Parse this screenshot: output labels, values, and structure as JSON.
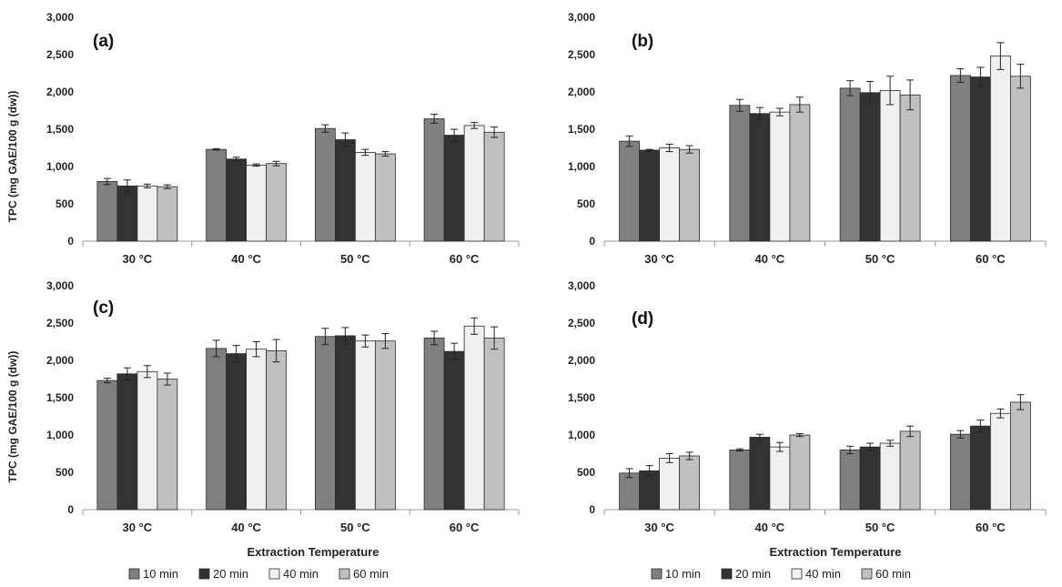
{
  "ylabel": "TPC (mg GAE/100 g (dw))",
  "xlabel": "Extraction Temperature",
  "legend": [
    {
      "label": "10 min",
      "color": "#808080"
    },
    {
      "label": "20 min",
      "color": "#333333"
    },
    {
      "label": "40 min",
      "color": "#f0f0f0"
    },
    {
      "label": "60 min",
      "color": "#c0c0c0"
    }
  ],
  "chart_data": [
    {
      "type": "bar",
      "panel": "(a)",
      "categories": [
        "30 °C",
        "40 °C",
        "50 °C",
        "60 °C"
      ],
      "ylim": [
        0,
        3000
      ],
      "yticks": [
        "0",
        "500",
        "1,000",
        "1,500",
        "2,000",
        "2,500",
        "3,000"
      ],
      "series": [
        {
          "name": "10 min",
          "values": [
            800,
            1230,
            1510,
            1640
          ],
          "errors": [
            40,
            10,
            50,
            60
          ]
        },
        {
          "name": "20 min",
          "values": [
            740,
            1100,
            1360,
            1420
          ],
          "errors": [
            80,
            25,
            90,
            80
          ]
        },
        {
          "name": "40 min",
          "values": [
            740,
            1020,
            1190,
            1550
          ],
          "errors": [
            25,
            15,
            40,
            40
          ]
        },
        {
          "name": "60 min",
          "values": [
            730,
            1040,
            1170,
            1460
          ],
          "errors": [
            25,
            30,
            30,
            70
          ]
        }
      ]
    },
    {
      "type": "bar",
      "panel": "(b)",
      "categories": [
        "30 °C",
        "40 °C",
        "50 °C",
        "60 °C"
      ],
      "ylim": [
        0,
        3000
      ],
      "yticks": [
        "0",
        "500",
        "1,000",
        "1,500",
        "2,000",
        "2,500",
        "3,000"
      ],
      "series": [
        {
          "name": "10 min",
          "values": [
            1340,
            1820,
            2050,
            2220
          ],
          "errors": [
            70,
            80,
            100,
            90
          ]
        },
        {
          "name": "20 min",
          "values": [
            1220,
            1710,
            1990,
            2200
          ],
          "errors": [
            10,
            80,
            150,
            130
          ]
        },
        {
          "name": "40 min",
          "values": [
            1250,
            1730,
            2020,
            2480
          ],
          "errors": [
            50,
            50,
            190,
            180
          ]
        },
        {
          "name": "60 min",
          "values": [
            1230,
            1830,
            1960,
            2210
          ],
          "errors": [
            50,
            100,
            200,
            160
          ]
        }
      ]
    },
    {
      "type": "bar",
      "panel": "(c)",
      "categories": [
        "30 °C",
        "40 °C",
        "50 °C",
        "60 °C"
      ],
      "ylim": [
        0,
        3000
      ],
      "yticks": [
        "0",
        "500",
        "1,000",
        "1,500",
        "2,000",
        "2,500",
        "3,000"
      ],
      "series": [
        {
          "name": "10 min",
          "values": [
            1730,
            2160,
            2320,
            2300
          ],
          "errors": [
            30,
            110,
            110,
            90
          ]
        },
        {
          "name": "20 min",
          "values": [
            1820,
            2090,
            2330,
            2120
          ],
          "errors": [
            80,
            110,
            110,
            110
          ]
        },
        {
          "name": "40 min",
          "values": [
            1850,
            2150,
            2260,
            2460
          ],
          "errors": [
            80,
            100,
            80,
            110
          ]
        },
        {
          "name": "60 min",
          "values": [
            1750,
            2130,
            2260,
            2300
          ],
          "errors": [
            80,
            150,
            100,
            150
          ]
        }
      ]
    },
    {
      "type": "bar",
      "panel": "(d)",
      "categories": [
        "30 °C",
        "40 °C",
        "50 °C",
        "60 °C"
      ],
      "ylim": [
        0,
        3000
      ],
      "yticks": [
        "0",
        "500",
        "1,000",
        "1,500",
        "2,000",
        "2,500",
        "3,000"
      ],
      "series": [
        {
          "name": "10 min",
          "values": [
            490,
            800,
            800,
            1010
          ],
          "errors": [
            60,
            15,
            50,
            50
          ]
        },
        {
          "name": "20 min",
          "values": [
            520,
            970,
            840,
            1120
          ],
          "errors": [
            70,
            40,
            50,
            80
          ]
        },
        {
          "name": "40 min",
          "values": [
            690,
            840,
            890,
            1290
          ],
          "errors": [
            60,
            60,
            40,
            60
          ]
        },
        {
          "name": "60 min",
          "values": [
            720,
            1000,
            1050,
            1440
          ],
          "errors": [
            50,
            20,
            70,
            100
          ]
        }
      ]
    }
  ]
}
